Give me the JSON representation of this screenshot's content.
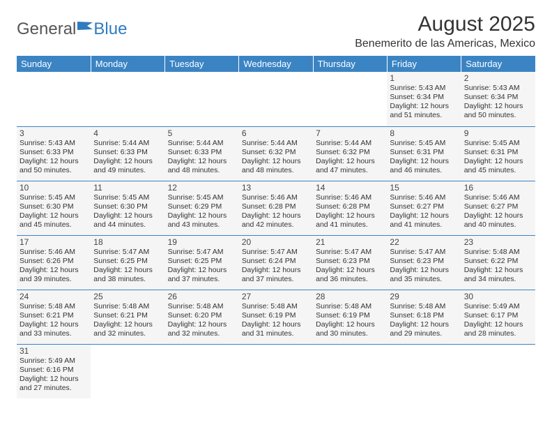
{
  "brand": {
    "part1": "General",
    "part2": "Blue"
  },
  "title": "August 2025",
  "location": "Benemerito de las Americas, Mexico",
  "colors": {
    "header_bg": "#3b84c4",
    "header_text": "#ffffff",
    "cell_bg": "#f5f5f5",
    "border": "#3b84c4",
    "text": "#333333",
    "brand_gray": "#555555",
    "brand_blue": "#2f7bbf"
  },
  "typography": {
    "title_fontsize": 30,
    "location_fontsize": 16,
    "dayheader_fontsize": 13,
    "daynum_fontsize": 12,
    "info_fontsize": 10.5
  },
  "day_headers": [
    "Sunday",
    "Monday",
    "Tuesday",
    "Wednesday",
    "Thursday",
    "Friday",
    "Saturday"
  ],
  "weeks": [
    [
      null,
      null,
      null,
      null,
      null,
      {
        "n": "1",
        "sr": "5:43 AM",
        "ss": "6:34 PM",
        "dl": "12 hours and 51 minutes."
      },
      {
        "n": "2",
        "sr": "5:43 AM",
        "ss": "6:34 PM",
        "dl": "12 hours and 50 minutes."
      }
    ],
    [
      {
        "n": "3",
        "sr": "5:43 AM",
        "ss": "6:33 PM",
        "dl": "12 hours and 50 minutes."
      },
      {
        "n": "4",
        "sr": "5:44 AM",
        "ss": "6:33 PM",
        "dl": "12 hours and 49 minutes."
      },
      {
        "n": "5",
        "sr": "5:44 AM",
        "ss": "6:33 PM",
        "dl": "12 hours and 48 minutes."
      },
      {
        "n": "6",
        "sr": "5:44 AM",
        "ss": "6:32 PM",
        "dl": "12 hours and 48 minutes."
      },
      {
        "n": "7",
        "sr": "5:44 AM",
        "ss": "6:32 PM",
        "dl": "12 hours and 47 minutes."
      },
      {
        "n": "8",
        "sr": "5:45 AM",
        "ss": "6:31 PM",
        "dl": "12 hours and 46 minutes."
      },
      {
        "n": "9",
        "sr": "5:45 AM",
        "ss": "6:31 PM",
        "dl": "12 hours and 45 minutes."
      }
    ],
    [
      {
        "n": "10",
        "sr": "5:45 AM",
        "ss": "6:30 PM",
        "dl": "12 hours and 45 minutes."
      },
      {
        "n": "11",
        "sr": "5:45 AM",
        "ss": "6:30 PM",
        "dl": "12 hours and 44 minutes."
      },
      {
        "n": "12",
        "sr": "5:45 AM",
        "ss": "6:29 PM",
        "dl": "12 hours and 43 minutes."
      },
      {
        "n": "13",
        "sr": "5:46 AM",
        "ss": "6:28 PM",
        "dl": "12 hours and 42 minutes."
      },
      {
        "n": "14",
        "sr": "5:46 AM",
        "ss": "6:28 PM",
        "dl": "12 hours and 41 minutes."
      },
      {
        "n": "15",
        "sr": "5:46 AM",
        "ss": "6:27 PM",
        "dl": "12 hours and 41 minutes."
      },
      {
        "n": "16",
        "sr": "5:46 AM",
        "ss": "6:27 PM",
        "dl": "12 hours and 40 minutes."
      }
    ],
    [
      {
        "n": "17",
        "sr": "5:46 AM",
        "ss": "6:26 PM",
        "dl": "12 hours and 39 minutes."
      },
      {
        "n": "18",
        "sr": "5:47 AM",
        "ss": "6:25 PM",
        "dl": "12 hours and 38 minutes."
      },
      {
        "n": "19",
        "sr": "5:47 AM",
        "ss": "6:25 PM",
        "dl": "12 hours and 37 minutes."
      },
      {
        "n": "20",
        "sr": "5:47 AM",
        "ss": "6:24 PM",
        "dl": "12 hours and 37 minutes."
      },
      {
        "n": "21",
        "sr": "5:47 AM",
        "ss": "6:23 PM",
        "dl": "12 hours and 36 minutes."
      },
      {
        "n": "22",
        "sr": "5:47 AM",
        "ss": "6:23 PM",
        "dl": "12 hours and 35 minutes."
      },
      {
        "n": "23",
        "sr": "5:48 AM",
        "ss": "6:22 PM",
        "dl": "12 hours and 34 minutes."
      }
    ],
    [
      {
        "n": "24",
        "sr": "5:48 AM",
        "ss": "6:21 PM",
        "dl": "12 hours and 33 minutes."
      },
      {
        "n": "25",
        "sr": "5:48 AM",
        "ss": "6:21 PM",
        "dl": "12 hours and 32 minutes."
      },
      {
        "n": "26",
        "sr": "5:48 AM",
        "ss": "6:20 PM",
        "dl": "12 hours and 32 minutes."
      },
      {
        "n": "27",
        "sr": "5:48 AM",
        "ss": "6:19 PM",
        "dl": "12 hours and 31 minutes."
      },
      {
        "n": "28",
        "sr": "5:48 AM",
        "ss": "6:19 PM",
        "dl": "12 hours and 30 minutes."
      },
      {
        "n": "29",
        "sr": "5:48 AM",
        "ss": "6:18 PM",
        "dl": "12 hours and 29 minutes."
      },
      {
        "n": "30",
        "sr": "5:49 AM",
        "ss": "6:17 PM",
        "dl": "12 hours and 28 minutes."
      }
    ],
    [
      {
        "n": "31",
        "sr": "5:49 AM",
        "ss": "6:16 PM",
        "dl": "12 hours and 27 minutes."
      },
      null,
      null,
      null,
      null,
      null,
      null
    ]
  ],
  "labels": {
    "sunrise": "Sunrise:",
    "sunset": "Sunset:",
    "daylight": "Daylight:"
  }
}
